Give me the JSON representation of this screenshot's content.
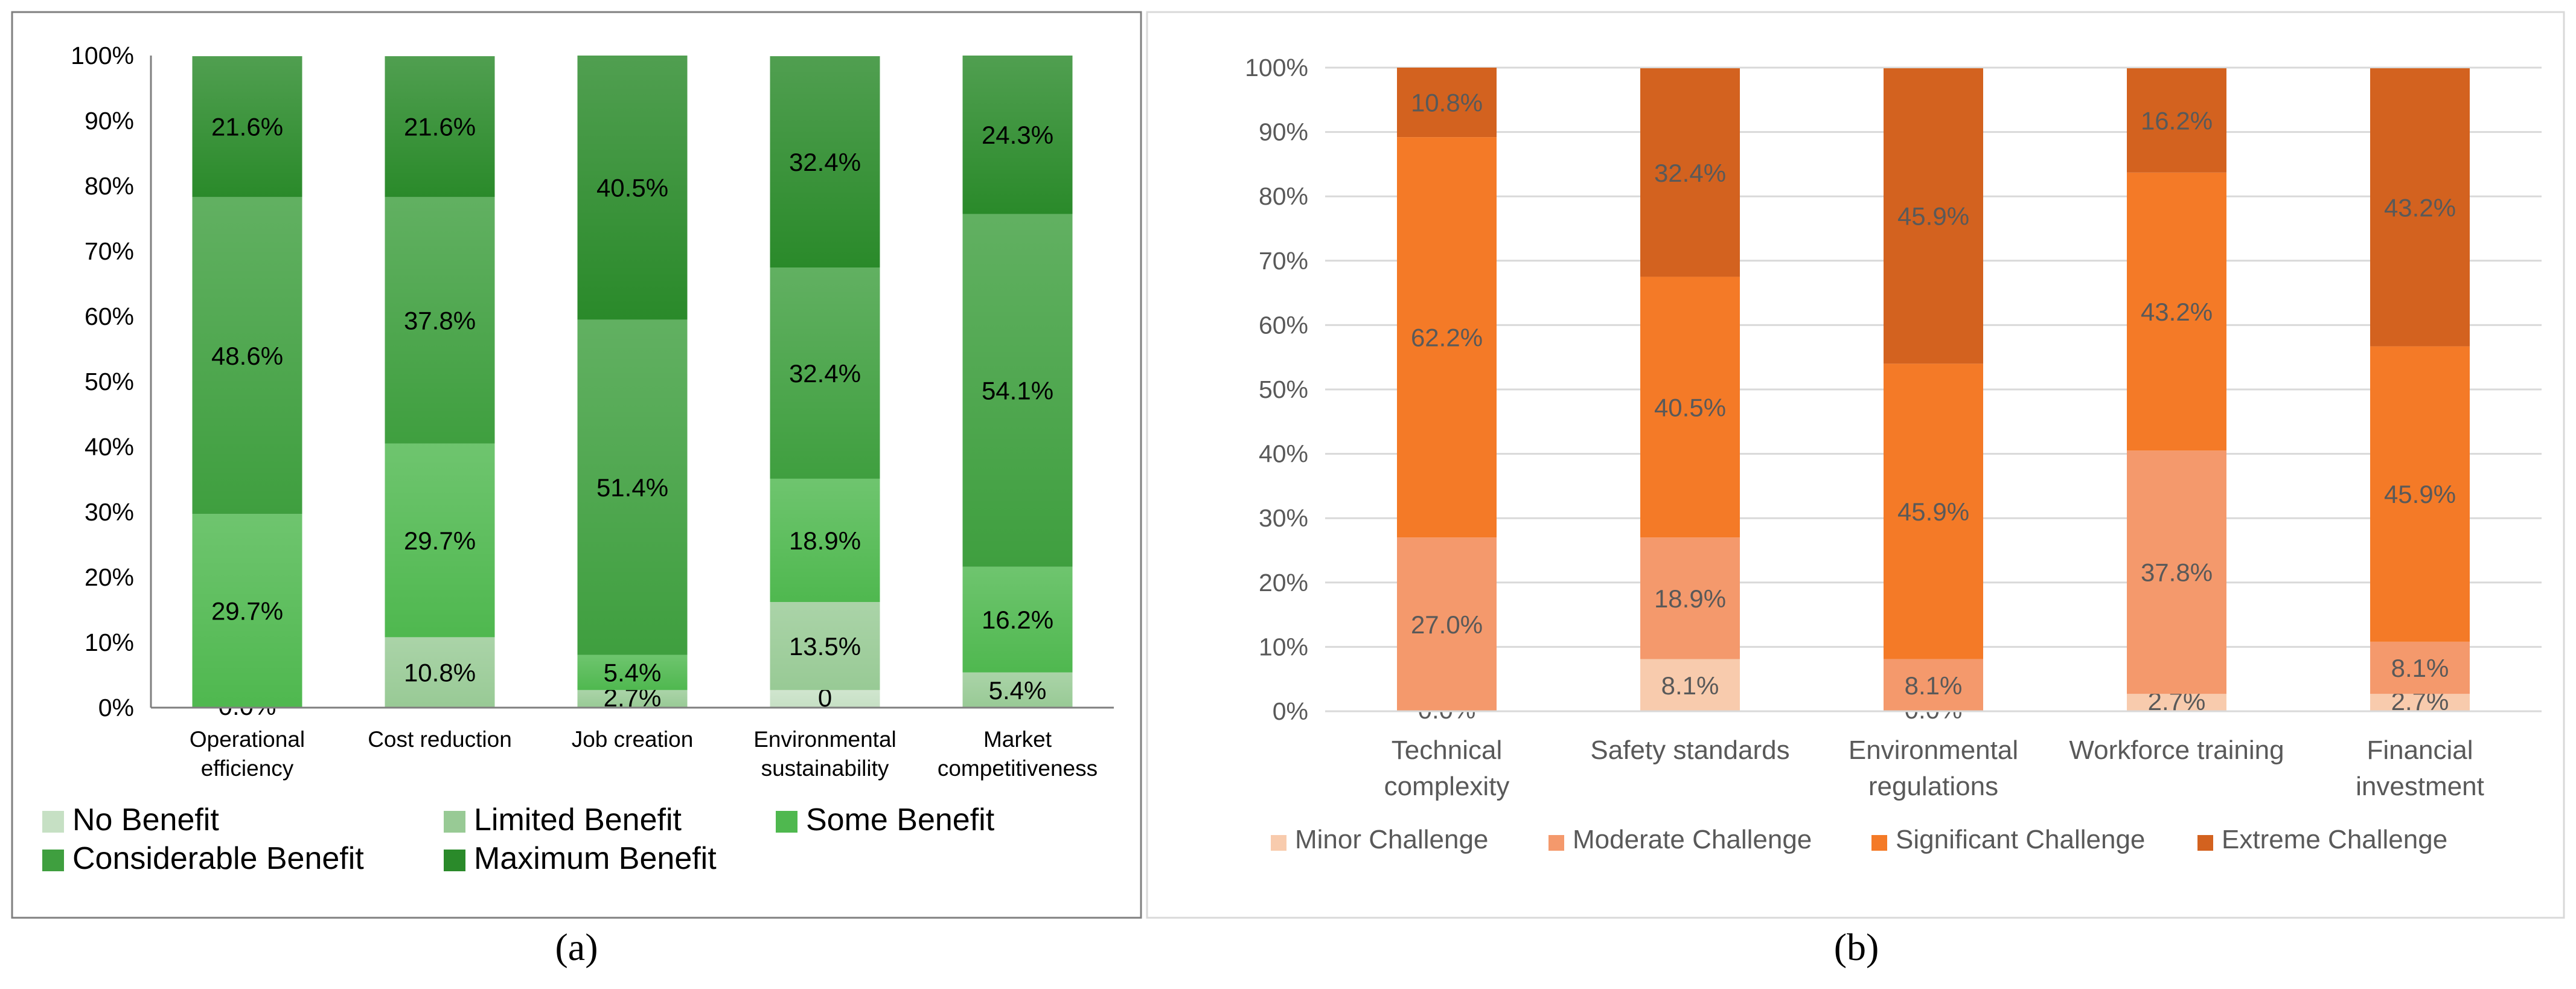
{
  "chart_data": [
    {
      "type": "bar",
      "stacked": true,
      "panel_label": "(a)",
      "categories": [
        [
          "Operational",
          "efficiency"
        ],
        [
          "Cost reduction"
        ],
        [
          "Job creation"
        ],
        [
          "Environmental",
          "sustainability"
        ],
        [
          "Market",
          "competitiveness"
        ]
      ],
      "yticks": [
        "0%",
        "10%",
        "20%",
        "30%",
        "40%",
        "50%",
        "60%",
        "70%",
        "80%",
        "90%",
        "100%"
      ],
      "ylim": [
        0,
        100
      ],
      "legend_position": "bottom",
      "series": [
        {
          "name": "No Benefit",
          "color": "#c6e0c4",
          "values": [
            0.0,
            0.0,
            0.0,
            2.7,
            0.0
          ],
          "labels": [
            "0.0%",
            "",
            "",
            "0",
            ""
          ]
        },
        {
          "name": "Limited Benefit",
          "color": "#98ca95",
          "values": [
            0.0,
            10.8,
            2.7,
            13.5,
            5.4
          ],
          "labels": [
            "",
            "10.8%",
            "2.7%",
            "13.5%",
            "5.4%"
          ]
        },
        {
          "name": "Some Benefit",
          "color": "#4fb84f",
          "values": [
            29.7,
            29.7,
            5.4,
            18.9,
            16.2
          ],
          "labels": [
            "29.7%",
            "29.7%",
            "5.4%",
            "18.9%",
            "16.2%"
          ]
        },
        {
          "name": "Considerable Benefit",
          "color": "#3f9f3f",
          "values": [
            48.6,
            37.8,
            51.4,
            32.4,
            54.1
          ],
          "labels": [
            "48.6%",
            "37.8%",
            "51.4%",
            "32.4%",
            "54.1%"
          ]
        },
        {
          "name": "Maximum Benefit",
          "color": "#2a8a2a",
          "values": [
            21.6,
            21.6,
            40.5,
            32.4,
            24.3
          ],
          "labels": [
            "21.6%",
            "21.6%",
            "40.5%",
            "32.4%",
            "24.3%"
          ]
        }
      ]
    },
    {
      "type": "bar",
      "stacked": true,
      "panel_label": "(b)",
      "categories": [
        [
          "Technical",
          "complexity"
        ],
        [
          "Safety standards"
        ],
        [
          "Environmental",
          "regulations"
        ],
        [
          "Workforce training"
        ],
        [
          "Financial",
          "investment"
        ]
      ],
      "yticks": [
        "0%",
        "10%",
        "20%",
        "30%",
        "40%",
        "50%",
        "60%",
        "70%",
        "80%",
        "90%",
        "100%"
      ],
      "ylim": [
        0,
        100
      ],
      "grid": true,
      "legend_position": "bottom",
      "series": [
        {
          "name": "Minor Challenge",
          "color": "#f8cbad",
          "values": [
            0.0,
            8.1,
            0.0,
            2.7,
            2.7
          ],
          "labels": [
            "0.0%",
            "8.1%",
            "0.0%",
            "2.7%",
            "2.7%"
          ]
        },
        {
          "name": "Moderate Challenge",
          "color": "#f4996c",
          "values": [
            27.0,
            18.9,
            8.1,
            37.8,
            8.1
          ],
          "labels": [
            "27.0%",
            "18.9%",
            "8.1%",
            "37.8%",
            "8.1%"
          ]
        },
        {
          "name": "Significant Challenge",
          "color": "#f47a27",
          "values": [
            62.2,
            40.5,
            45.9,
            43.2,
            45.9
          ],
          "labels": [
            "62.2%",
            "40.5%",
            "45.9%",
            "43.2%",
            "45.9%"
          ]
        },
        {
          "name": "Extreme Challenge",
          "color": "#d3621f",
          "values": [
            10.8,
            32.4,
            45.9,
            16.2,
            43.2
          ],
          "labels": [
            "10.8%",
            "32.4%",
            "45.9%",
            "16.2%",
            "43.2%"
          ]
        }
      ]
    }
  ]
}
